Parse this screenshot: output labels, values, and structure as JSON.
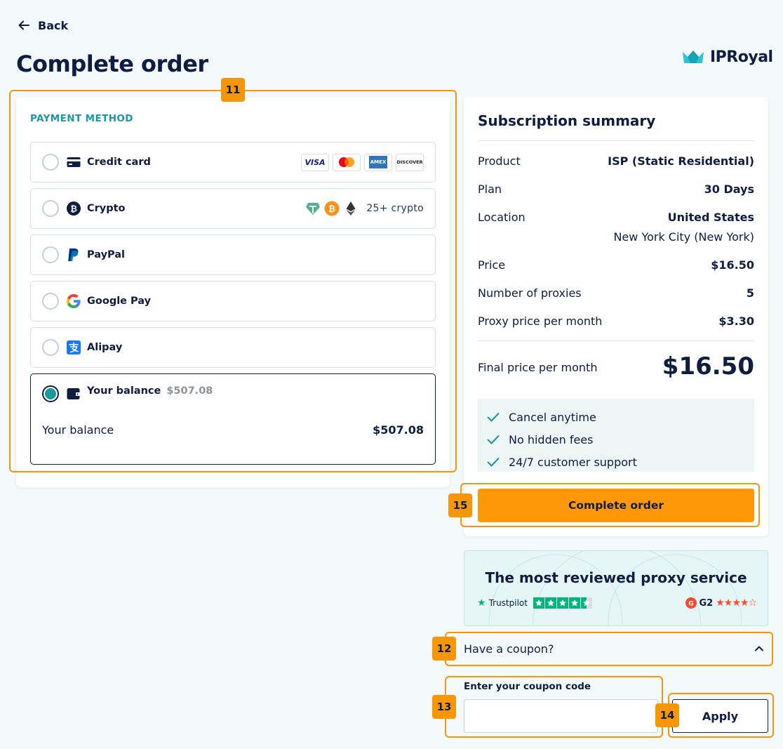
{
  "back_label": "Back",
  "page_title": "Complete order",
  "brand": "IPRoyal",
  "payment": {
    "section_label": "PAYMENT METHOD",
    "options": [
      {
        "label": "Credit card",
        "icon": "credit-card-icon",
        "selected": false
      },
      {
        "label": "Crypto",
        "icon": "bitcoin-icon",
        "selected": false
      },
      {
        "label": "PayPal",
        "icon": "paypal-icon",
        "selected": false
      },
      {
        "label": "Google Pay",
        "icon": "google-icon",
        "selected": false
      },
      {
        "label": "Alipay",
        "icon": "alipay-icon",
        "selected": false
      },
      {
        "label": "Your balance",
        "icon": "wallet-icon",
        "selected": true
      }
    ],
    "card_brands": [
      "VISA",
      "mastercard",
      "AMEX",
      "DISCOVER"
    ],
    "crypto_more": "25+ crypto",
    "balance_inline": "$507.08",
    "balance_row_label": "Your balance",
    "balance_row_value": "$507.08"
  },
  "summary": {
    "title": "Subscription summary",
    "product_label": "Product",
    "product_value": "ISP (Static Residential)",
    "plan_label": "Plan",
    "plan_value": "30 Days",
    "location_label": "Location",
    "location_value": "United States",
    "location_sub": "New York City (New York)",
    "price_label": "Price",
    "price_value": "$16.50",
    "proxies_label": "Number of proxies",
    "proxies_value": "5",
    "ppm_label": "Proxy price per month",
    "ppm_value": "$3.30",
    "final_label": "Final price per month",
    "final_value": "$16.50",
    "benefits": [
      "Cancel anytime",
      "No hidden fees",
      "24/7 customer support"
    ],
    "cta": "Complete order"
  },
  "review": {
    "title": "The most reviewed proxy service",
    "trustpilot": "Trustpilot",
    "g2": "G2"
  },
  "coupon": {
    "toggle_label": "Have a coupon?",
    "field_label": "Enter your coupon code",
    "value": "",
    "placeholder": "",
    "apply": "Apply"
  },
  "annotations": [
    "11",
    "12",
    "13",
    "14",
    "15"
  ],
  "colors": {
    "navy": "#0f1d42",
    "teal": "#17999f",
    "orange": "#ff9706",
    "highlight": "#f79606"
  }
}
